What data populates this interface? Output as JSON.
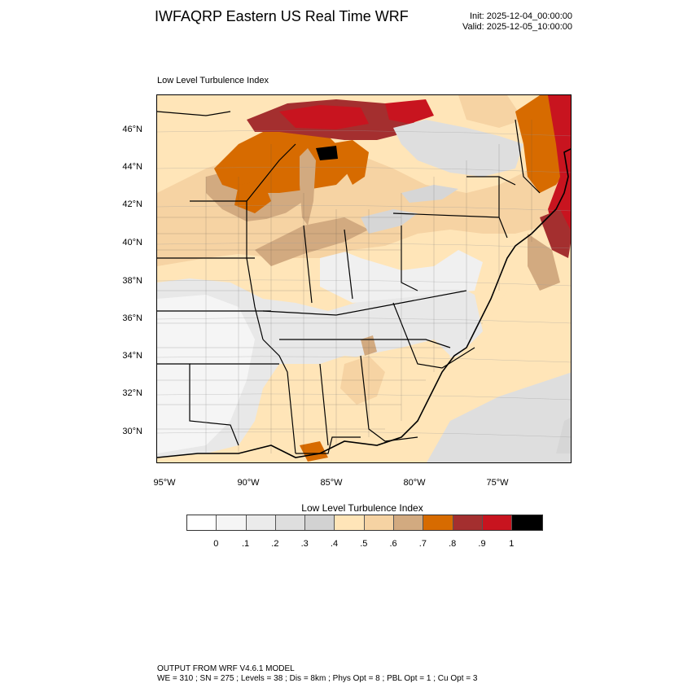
{
  "header": {
    "title": "IWFAQRP Eastern US Real Time WRF",
    "init": "Init: 2025-12-04_00:00:00",
    "valid": "Valid: 2025-12-05_10:00:00"
  },
  "panel": {
    "title": "Low Level Turbulence Index"
  },
  "map": {
    "lat_labels": [
      "46°N",
      "44°N",
      "42°N",
      "40°N",
      "38°N",
      "36°N",
      "34°N",
      "32°N",
      "30°N"
    ],
    "lon_labels": [
      "95°W",
      "90°W",
      "85°W",
      "80°W",
      "75°W"
    ],
    "field_colors": {
      "land_high": "#c8141f",
      "land_orange": "#d76b00",
      "land_tan": "#d2aa80",
      "land_light": "#f6d3a3",
      "land_pale": "#ffe5b8",
      "land_gray": "#d6d6d6",
      "water_gray": "#dedede"
    }
  },
  "colorbar": {
    "title": "Low Level Turbulence Index",
    "colors": [
      "#ffffff",
      "#f5f5f5",
      "#ebebeb",
      "#dedede",
      "#d2d2d2",
      "#ffe5b8",
      "#f6d3a3",
      "#d2aa80",
      "#d76b00",
      "#a42f2f",
      "#c8141f",
      "#000000"
    ],
    "labels": [
      "0",
      ".1",
      ".2",
      ".3",
      ".4",
      ".5",
      ".6",
      ".7",
      ".8",
      ".9",
      "1"
    ]
  },
  "footer": {
    "line1": "OUTPUT FROM WRF V4.6.1 MODEL",
    "line2": "WE = 310 ; SN = 275 ; Levels = 38 ; Dis = 8km ; Phys Opt = 8 ; PBL Opt = 1 ; Cu Opt = 3"
  }
}
